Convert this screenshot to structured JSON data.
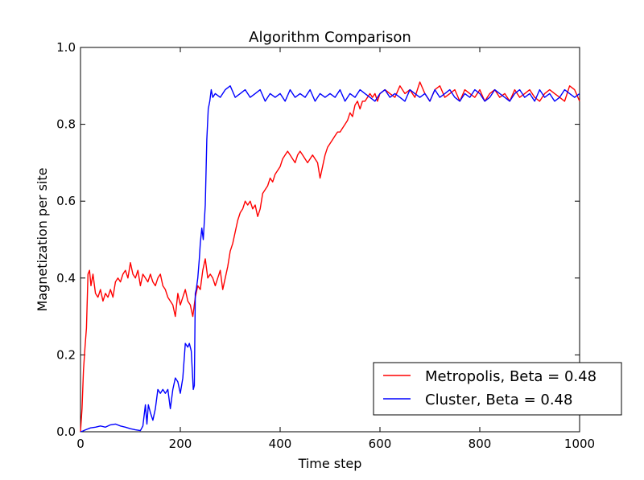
{
  "chart_data": {
    "type": "line",
    "title": "Algorithm Comparison",
    "xlabel": "Time step",
    "ylabel": "Magnetization per site",
    "xlim": [
      0,
      1000
    ],
    "ylim": [
      0.0,
      1.0
    ],
    "xticks": [
      0,
      200,
      400,
      600,
      800,
      1000
    ],
    "xtick_labels": [
      "0",
      "200",
      "400",
      "600",
      "800",
      "1000"
    ],
    "yticks": [
      0.0,
      0.2,
      0.4,
      0.6,
      0.8,
      1.0
    ],
    "ytick_labels": [
      "0.0",
      "0.2",
      "0.4",
      "0.6",
      "0.8",
      "1.0"
    ],
    "grid": false,
    "legend_position": "lower-right",
    "series": [
      {
        "name": "Metropolis, Beta = 0.48",
        "color": "#ff0000",
        "x": [
          0,
          3,
          6,
          9,
          12,
          15,
          18,
          21,
          25,
          30,
          35,
          40,
          45,
          50,
          55,
          60,
          65,
          70,
          75,
          80,
          85,
          90,
          95,
          100,
          105,
          110,
          115,
          120,
          125,
          130,
          135,
          140,
          145,
          150,
          155,
          160,
          165,
          170,
          175,
          180,
          185,
          190,
          195,
          200,
          205,
          210,
          215,
          220,
          225,
          230,
          235,
          240,
          245,
          250,
          255,
          260,
          265,
          270,
          275,
          280,
          285,
          290,
          295,
          300,
          305,
          310,
          315,
          320,
          325,
          330,
          335,
          340,
          345,
          350,
          355,
          360,
          365,
          370,
          375,
          380,
          385,
          390,
          395,
          400,
          405,
          410,
          415,
          420,
          425,
          430,
          435,
          440,
          445,
          450,
          455,
          460,
          465,
          470,
          475,
          480,
          485,
          490,
          495,
          500,
          505,
          510,
          515,
          520,
          525,
          530,
          535,
          540,
          545,
          550,
          555,
          560,
          565,
          570,
          575,
          580,
          585,
          590,
          595,
          600,
          610,
          620,
          630,
          640,
          650,
          660,
          670,
          680,
          690,
          700,
          710,
          720,
          730,
          740,
          750,
          760,
          770,
          780,
          790,
          800,
          810,
          820,
          830,
          840,
          850,
          860,
          870,
          880,
          890,
          900,
          910,
          920,
          930,
          940,
          950,
          960,
          970,
          980,
          990,
          1000
        ],
        "y": [
          0.0,
          0.06,
          0.16,
          0.22,
          0.27,
          0.41,
          0.42,
          0.38,
          0.41,
          0.36,
          0.35,
          0.37,
          0.34,
          0.36,
          0.35,
          0.37,
          0.35,
          0.39,
          0.4,
          0.39,
          0.41,
          0.42,
          0.4,
          0.44,
          0.41,
          0.4,
          0.42,
          0.38,
          0.41,
          0.4,
          0.39,
          0.41,
          0.39,
          0.38,
          0.4,
          0.41,
          0.38,
          0.37,
          0.35,
          0.34,
          0.33,
          0.3,
          0.36,
          0.33,
          0.35,
          0.37,
          0.34,
          0.33,
          0.3,
          0.35,
          0.38,
          0.37,
          0.42,
          0.45,
          0.4,
          0.41,
          0.4,
          0.38,
          0.4,
          0.42,
          0.37,
          0.4,
          0.43,
          0.47,
          0.49,
          0.52,
          0.55,
          0.57,
          0.58,
          0.6,
          0.59,
          0.6,
          0.58,
          0.59,
          0.56,
          0.58,
          0.62,
          0.63,
          0.64,
          0.66,
          0.65,
          0.67,
          0.68,
          0.69,
          0.71,
          0.72,
          0.73,
          0.72,
          0.71,
          0.7,
          0.72,
          0.73,
          0.72,
          0.71,
          0.7,
          0.71,
          0.72,
          0.71,
          0.7,
          0.66,
          0.69,
          0.72,
          0.74,
          0.75,
          0.76,
          0.77,
          0.78,
          0.78,
          0.79,
          0.8,
          0.81,
          0.83,
          0.82,
          0.85,
          0.86,
          0.84,
          0.86,
          0.86,
          0.87,
          0.88,
          0.87,
          0.88,
          0.86,
          0.88,
          0.89,
          0.88,
          0.87,
          0.9,
          0.88,
          0.89,
          0.87,
          0.91,
          0.88,
          0.86,
          0.89,
          0.9,
          0.87,
          0.88,
          0.89,
          0.86,
          0.89,
          0.88,
          0.87,
          0.89,
          0.86,
          0.88,
          0.89,
          0.87,
          0.88,
          0.86,
          0.89,
          0.87,
          0.88,
          0.89,
          0.87,
          0.86,
          0.88,
          0.89,
          0.88,
          0.87,
          0.86,
          0.9,
          0.89,
          0.86
        ]
      },
      {
        "name": "Cluster, Beta = 0.48",
        "color": "#0000ff",
        "x": [
          0,
          5,
          10,
          20,
          30,
          40,
          50,
          60,
          70,
          80,
          90,
          100,
          110,
          120,
          125,
          130,
          133,
          136,
          140,
          145,
          150,
          155,
          160,
          165,
          170,
          175,
          180,
          185,
          190,
          195,
          200,
          205,
          210,
          215,
          218,
          222,
          226,
          228,
          230,
          232,
          235,
          238,
          240,
          243,
          246,
          250,
          253,
          256,
          259,
          262,
          265,
          270,
          280,
          290,
          300,
          310,
          320,
          330,
          340,
          350,
          360,
          370,
          380,
          390,
          400,
          410,
          420,
          430,
          440,
          450,
          460,
          470,
          480,
          490,
          500,
          510,
          520,
          530,
          540,
          550,
          560,
          570,
          580,
          590,
          600,
          610,
          620,
          630,
          640,
          650,
          660,
          670,
          680,
          690,
          700,
          710,
          720,
          730,
          740,
          750,
          760,
          770,
          780,
          790,
          800,
          810,
          820,
          830,
          840,
          850,
          860,
          870,
          880,
          890,
          900,
          910,
          920,
          930,
          940,
          950,
          960,
          970,
          980,
          990,
          1000
        ],
        "y": [
          0.0,
          0.002,
          0.005,
          0.01,
          0.012,
          0.015,
          0.012,
          0.018,
          0.02,
          0.015,
          0.012,
          0.008,
          0.005,
          0.003,
          0.015,
          0.07,
          0.02,
          0.07,
          0.05,
          0.03,
          0.06,
          0.11,
          0.1,
          0.11,
          0.1,
          0.11,
          0.06,
          0.11,
          0.14,
          0.13,
          0.1,
          0.14,
          0.23,
          0.22,
          0.23,
          0.21,
          0.11,
          0.12,
          0.36,
          0.37,
          0.4,
          0.45,
          0.49,
          0.53,
          0.5,
          0.59,
          0.76,
          0.84,
          0.86,
          0.89,
          0.87,
          0.88,
          0.87,
          0.89,
          0.9,
          0.87,
          0.88,
          0.89,
          0.87,
          0.88,
          0.89,
          0.86,
          0.88,
          0.87,
          0.88,
          0.86,
          0.89,
          0.87,
          0.88,
          0.87,
          0.89,
          0.86,
          0.88,
          0.87,
          0.88,
          0.87,
          0.89,
          0.86,
          0.88,
          0.87,
          0.89,
          0.88,
          0.87,
          0.86,
          0.88,
          0.89,
          0.87,
          0.88,
          0.87,
          0.86,
          0.89,
          0.88,
          0.87,
          0.88,
          0.86,
          0.89,
          0.87,
          0.88,
          0.89,
          0.87,
          0.86,
          0.88,
          0.87,
          0.89,
          0.88,
          0.86,
          0.87,
          0.89,
          0.88,
          0.87,
          0.86,
          0.88,
          0.89,
          0.87,
          0.88,
          0.86,
          0.89,
          0.87,
          0.88,
          0.86,
          0.87,
          0.89,
          0.88,
          0.87,
          0.88
        ]
      }
    ]
  }
}
